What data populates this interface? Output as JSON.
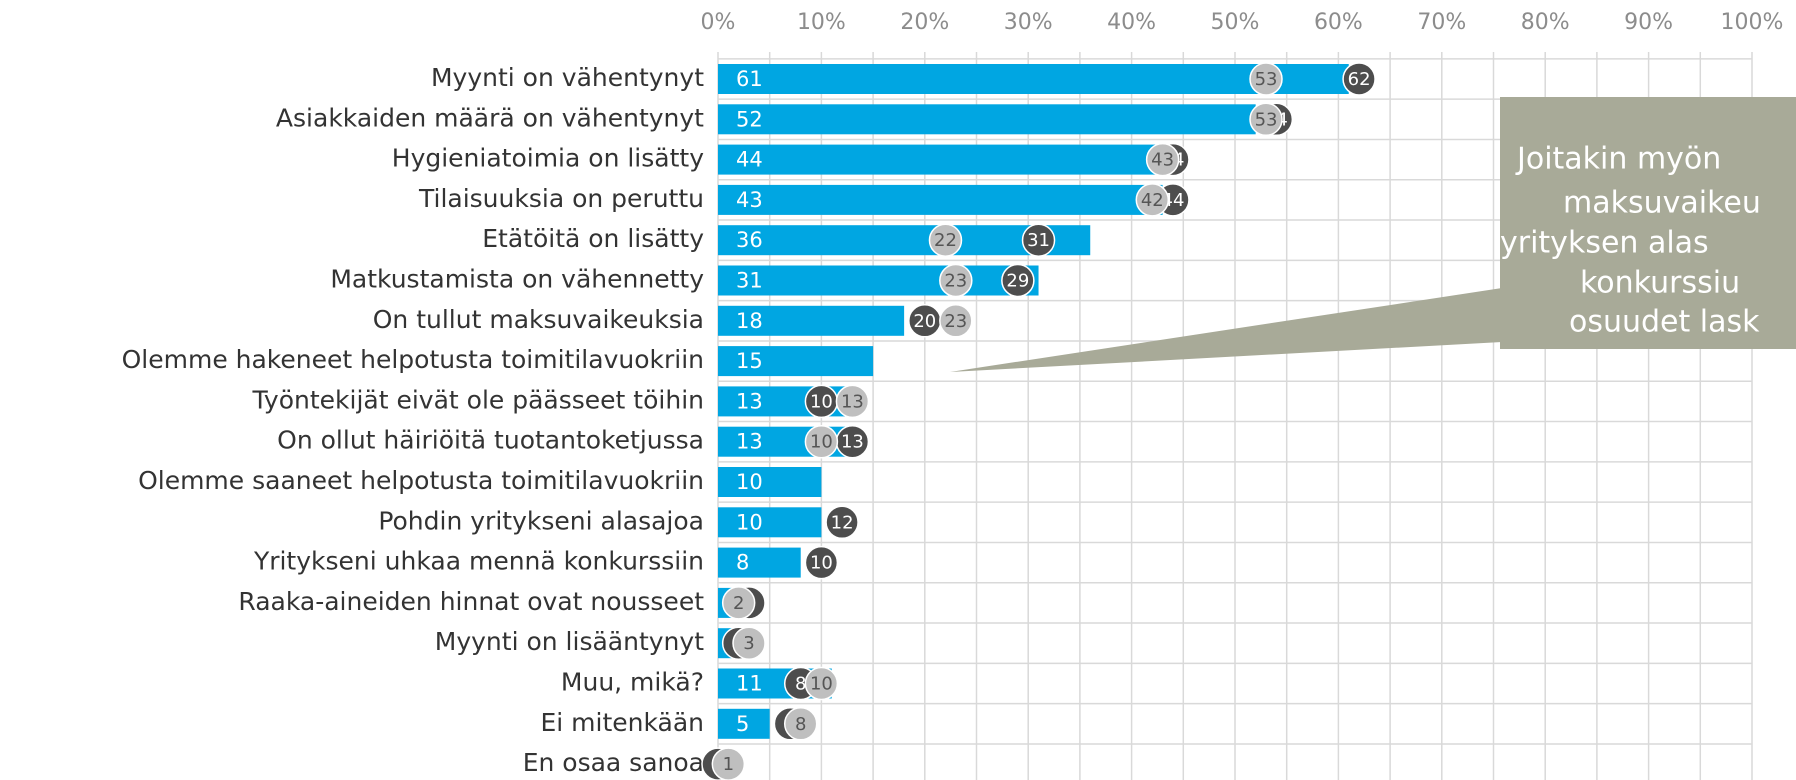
{
  "chart_data": {
    "type": "bar",
    "orientation": "horizontal",
    "categories": [
      "Myynti on vähentynyt",
      "Asiakkaiden määrä on vähentynyt",
      "Hygieniatoimia on lisätty",
      "Tilaisuuksia on peruttu",
      "Etätöitä on lisätty",
      "Matkustamista on vähennetty",
      "On tullut maksuvaikeuksia",
      "Olemme hakeneet helpotusta toimitilavuokriin",
      "Työntekijät eivät ole päässeet töihin",
      "On ollut häiriöitä tuotantoketjussa",
      "Olemme saaneet helpotusta toimitilavuokriin",
      "Pohdin yritykseni alasajoa",
      "Yritykseni uhkaa mennä konkurssiin",
      "Raaka-aineiden hinnat ovat nousseet",
      "Myynti on lisääntynyt",
      "Muu, mikä?",
      "Ei mitenkään",
      "En osaa sanoa"
    ],
    "series": [
      {
        "color": "#00a6e2",
        "mark": "bar",
        "values": [
          61,
          52,
          44,
          43,
          36,
          31,
          18,
          15,
          13,
          13,
          10,
          10,
          8,
          2,
          2,
          11,
          5,
          null
        ]
      },
      {
        "color": "#4d4d4d",
        "mark": "dot",
        "values": [
          62,
          54,
          44,
          44,
          31,
          29,
          20,
          null,
          10,
          13,
          null,
          12,
          10,
          3,
          2,
          8,
          7,
          0
        ]
      },
      {
        "color": "#bfbfbf",
        "mark": "dot",
        "values": [
          53,
          53,
          43,
          42,
          22,
          23,
          23,
          null,
          13,
          10,
          null,
          null,
          null,
          2,
          3,
          10,
          8,
          1
        ]
      }
    ],
    "xlim": [
      0,
      100
    ],
    "xticks": [
      {
        "value": 0,
        "label": "0%"
      },
      {
        "value": 10,
        "label": "10%"
      },
      {
        "value": 20,
        "label": "20%"
      },
      {
        "value": 30,
        "label": "30%"
      },
      {
        "value": 40,
        "label": "40%"
      },
      {
        "value": 50,
        "label": "50%"
      },
      {
        "value": 60,
        "label": "60%"
      },
      {
        "value": 70,
        "label": "70%"
      },
      {
        "value": 80,
        "label": "80%"
      },
      {
        "value": 90,
        "label": "90%"
      },
      {
        "value": 100,
        "label": "100%"
      }
    ],
    "grid": true,
    "annotation": {
      "lines": [
        "Joitakin myön",
        "maksuvaikeu",
        "yrityksen alas",
        "konkurssiu",
        "osuudet lask"
      ],
      "color": "#a8aa98"
    }
  }
}
